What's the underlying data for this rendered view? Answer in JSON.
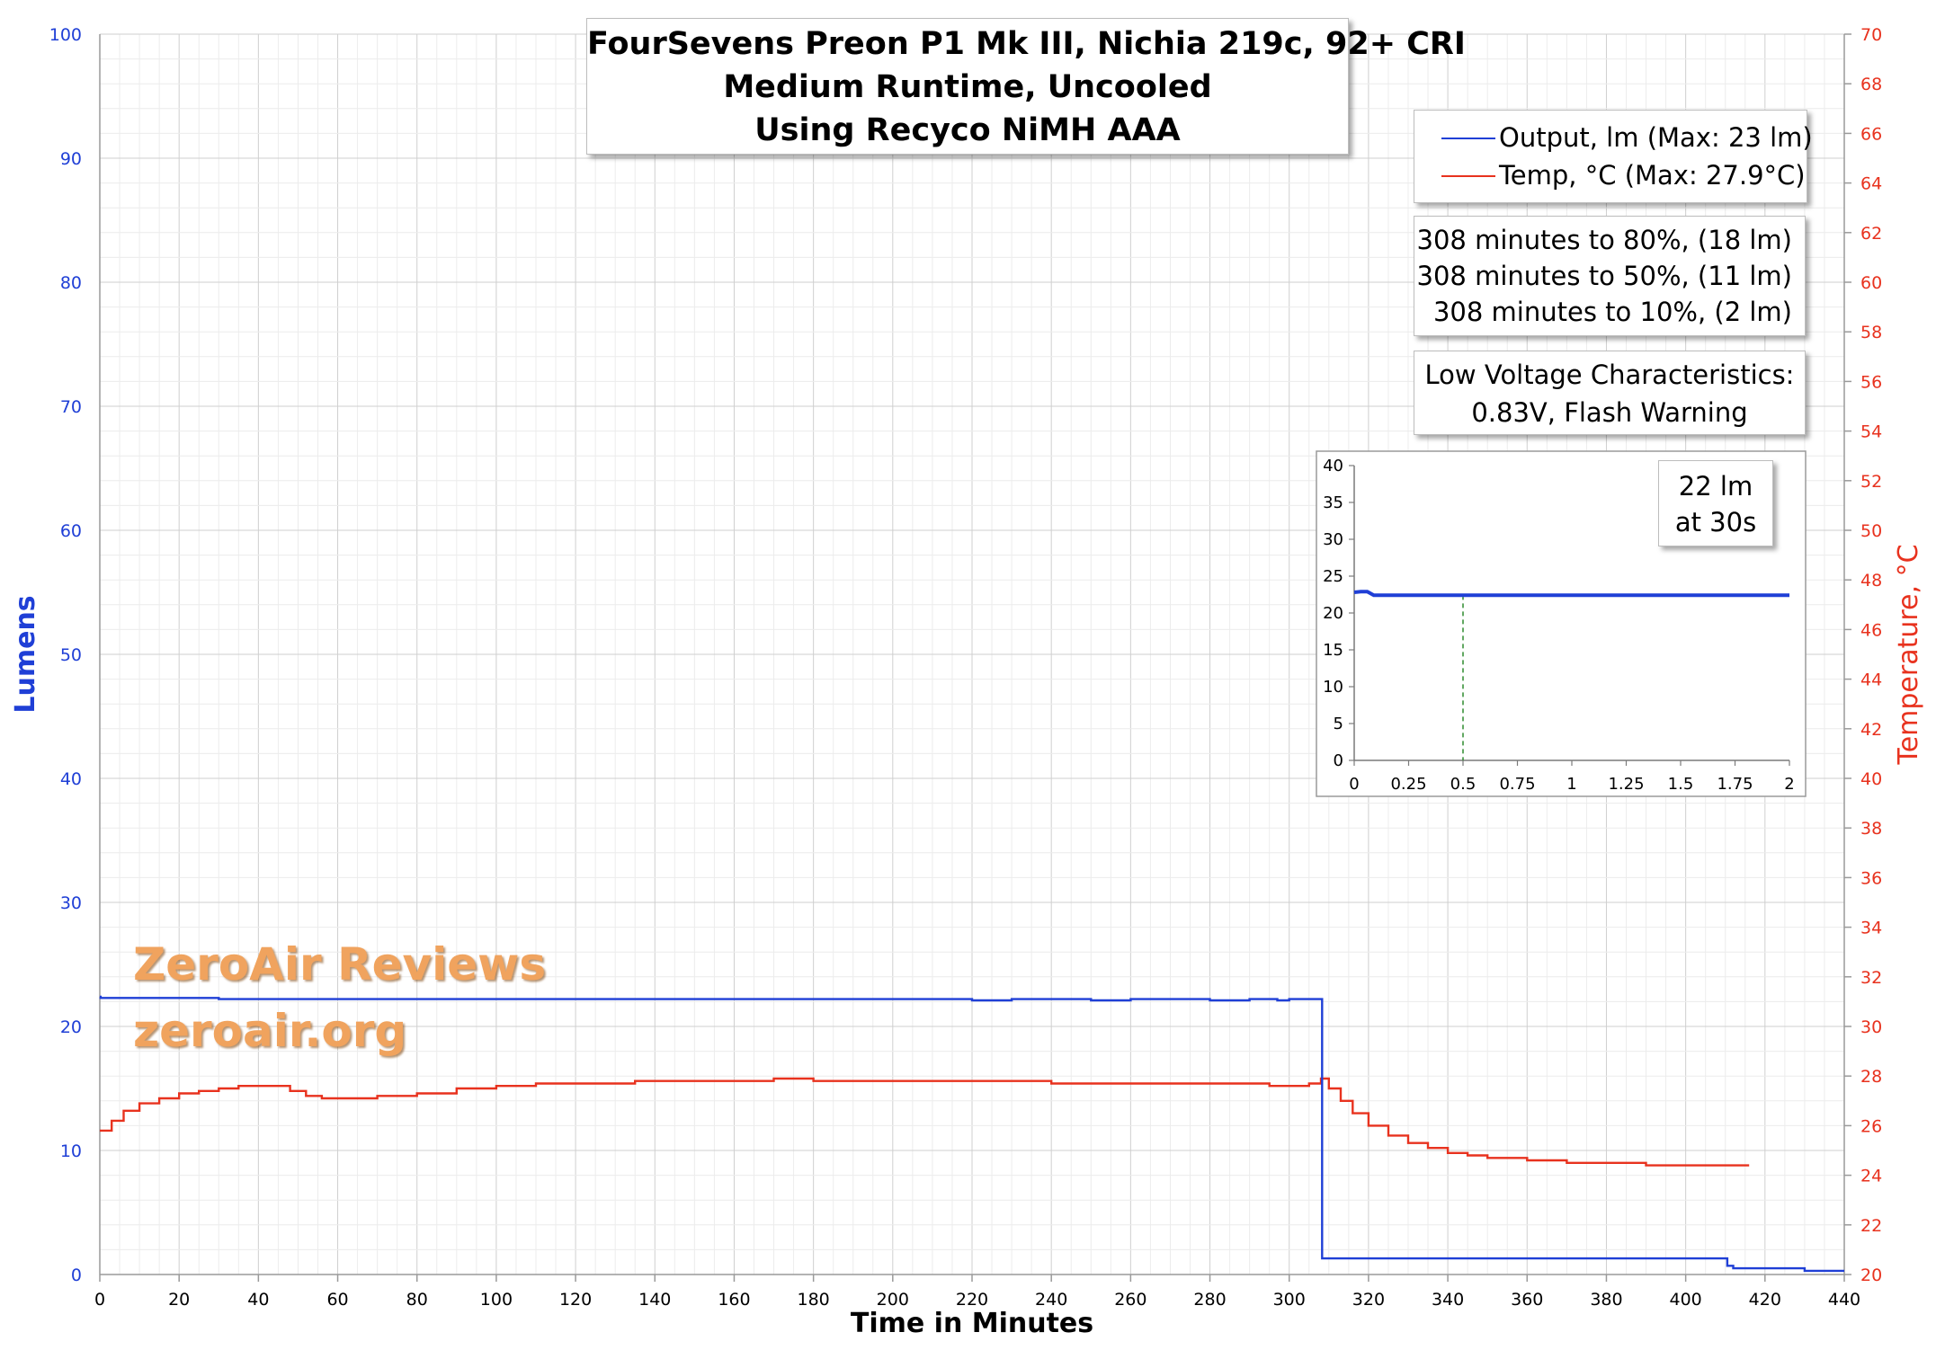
{
  "title_lines": [
    "FourSevens Preon P1 Mk III, Nichia 219c, 92+ CRI",
    "Medium Runtime, Uncooled",
    "Using Recyco NiMH AAA"
  ],
  "legend": [
    {
      "label": "Output, lm (Max: 23 lm)",
      "color": "#1f3fd6"
    },
    {
      "label": "Temp, °C (Max: 27.9°C)",
      "color": "#e8321e"
    }
  ],
  "stats": [
    "308 minutes to 80%, (18 lm)",
    "308 minutes to 50%, (11 lm)",
    "308 minutes to 10%, (2 lm)"
  ],
  "low_voltage": [
    "Low Voltage Characteristics:",
    "0.83V, Flash Warning"
  ],
  "inset_note": [
    "22 lm",
    "at 30s"
  ],
  "watermark": [
    "ZeroAir Reviews",
    "zeroair.org"
  ],
  "colors": {
    "lumens": "#1f3fd6",
    "temp": "#e8321e",
    "grid": "#d9d9d9",
    "guide": "#2e8b2e"
  },
  "chart_data": [
    {
      "type": "line",
      "xlabel": "Time in Minutes",
      "ylabel": "Lumens",
      "y2label": "Temperature, °C",
      "xlim": [
        0,
        440
      ],
      "ylim": [
        0,
        100
      ],
      "y2lim": [
        20,
        70
      ],
      "x_ticks": [
        0,
        20,
        40,
        60,
        80,
        100,
        120,
        140,
        160,
        180,
        200,
        220,
        240,
        260,
        280,
        300,
        320,
        340,
        360,
        380,
        400,
        420,
        440
      ],
      "y_ticks": [
        0,
        10,
        20,
        30,
        40,
        50,
        60,
        70,
        80,
        90,
        100
      ],
      "y2_ticks": [
        20,
        22,
        24,
        26,
        28,
        30,
        32,
        34,
        36,
        38,
        40,
        42,
        44,
        46,
        48,
        50,
        52,
        54,
        56,
        58,
        60,
        62,
        64,
        66,
        68,
        70
      ],
      "grid": true,
      "legend_position": "top-right",
      "series": [
        {
          "name": "Output, lm (Max: 23 lm)",
          "axis": "left",
          "x": [
            0,
            0.2,
            2,
            30,
            100,
            220,
            230,
            250,
            260,
            280,
            290,
            297,
            300,
            308,
            308.3,
            410,
            410.5,
            412,
            430,
            440
          ],
          "y": [
            22.4,
            22.3,
            22.3,
            22.2,
            22.2,
            22.1,
            22.2,
            22.1,
            22.2,
            22.1,
            22.2,
            22.1,
            22.2,
            22.2,
            1.3,
            1.3,
            0.7,
            0.5,
            0.3,
            0.3
          ]
        },
        {
          "name": "Temp, °C (Max: 27.9°C)",
          "axis": "right",
          "x": [
            0,
            3,
            6,
            10,
            15,
            20,
            25,
            30,
            35,
            40,
            45,
            48,
            52,
            56,
            60,
            70,
            80,
            90,
            100,
            110,
            120,
            130,
            135,
            140,
            160,
            170,
            180,
            200,
            220,
            240,
            260,
            280,
            295,
            300,
            305,
            308,
            310,
            313,
            316,
            320,
            325,
            330,
            335,
            340,
            345,
            350,
            360,
            370,
            380,
            390,
            400,
            410,
            416
          ],
          "y": [
            25.8,
            26.2,
            26.6,
            26.9,
            27.1,
            27.3,
            27.4,
            27.5,
            27.6,
            27.6,
            27.6,
            27.4,
            27.2,
            27.1,
            27.1,
            27.2,
            27.3,
            27.5,
            27.6,
            27.7,
            27.7,
            27.7,
            27.8,
            27.8,
            27.8,
            27.9,
            27.8,
            27.8,
            27.8,
            27.7,
            27.7,
            27.7,
            27.6,
            27.6,
            27.7,
            27.9,
            27.5,
            27.0,
            26.5,
            26.0,
            25.6,
            25.3,
            25.1,
            24.9,
            24.8,
            24.7,
            24.6,
            24.5,
            24.5,
            24.4,
            24.4,
            24.4,
            24.4
          ]
        }
      ]
    },
    {
      "type": "line",
      "title": "",
      "xlabel": "",
      "ylabel": "",
      "xlim": [
        0,
        2
      ],
      "ylim": [
        0,
        40
      ],
      "x_ticks": [
        0,
        0.25,
        0.5,
        0.75,
        1,
        1.25,
        1.5,
        1.75,
        2
      ],
      "y_ticks": [
        0,
        5,
        10,
        15,
        20,
        25,
        30,
        35,
        40
      ],
      "x_tick_labels": [
        "0",
        "0.25",
        "0.5",
        "0.75",
        "1",
        "1.25",
        "1.5",
        "1.75",
        "2"
      ],
      "grid": false,
      "vertical_marker_x": 0.5,
      "series": [
        {
          "name": "Output, lm (Max: 23 lm)",
          "x": [
            0,
            0.03,
            0.06,
            0.09,
            0.12,
            0.5,
            1,
            1.5,
            2
          ],
          "y": [
            22.8,
            22.9,
            22.9,
            22.4,
            22.4,
            22.4,
            22.4,
            22.4,
            22.4
          ]
        }
      ]
    }
  ]
}
